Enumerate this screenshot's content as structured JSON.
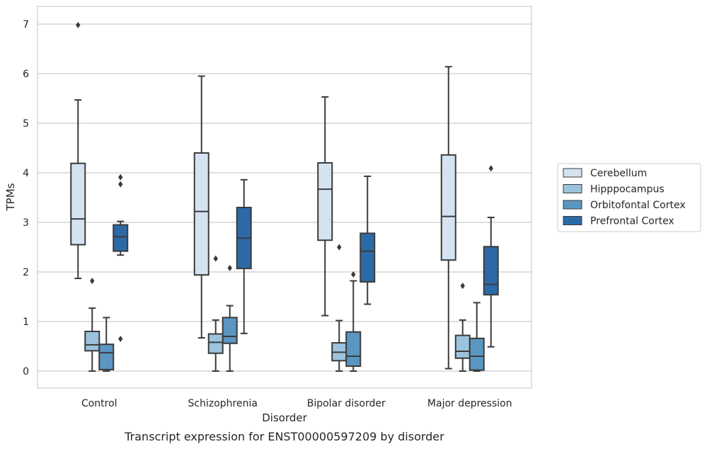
{
  "chart_data": {
    "type": "boxplot",
    "title": "",
    "caption": "Transcript expression for ENST00000597209 by disorder",
    "xlabel": "Disorder",
    "ylabel": "TPMs",
    "ylim": [
      -0.33,
      7.35
    ],
    "yticks": [
      0,
      1,
      2,
      3,
      4,
      5,
      6,
      7
    ],
    "grid": "horizontal",
    "legend_position": "center-right",
    "categories": [
      "Control",
      "Schizophrenia",
      "Bipolar disorder",
      "Major depression"
    ],
    "series": [
      {
        "name": "Cerebellum",
        "color": "#d5e3f1",
        "boxes": [
          {
            "q1": 2.55,
            "median": 3.07,
            "q3": 4.19,
            "whisker_low": 1.87,
            "whisker_high": 5.47,
            "outliers": [
              6.98
            ]
          },
          {
            "q1": 1.94,
            "median": 3.22,
            "q3": 4.4,
            "whisker_low": 0.67,
            "whisker_high": 5.95,
            "outliers": []
          },
          {
            "q1": 2.64,
            "median": 3.67,
            "q3": 4.2,
            "whisker_low": 1.12,
            "whisker_high": 5.53,
            "outliers": []
          },
          {
            "q1": 2.24,
            "median": 3.12,
            "q3": 4.36,
            "whisker_low": 0.05,
            "whisker_high": 6.14,
            "outliers": []
          }
        ]
      },
      {
        "name": "Hipppocampus",
        "color": "#9cc3dd",
        "boxes": [
          {
            "q1": 0.41,
            "median": 0.53,
            "q3": 0.8,
            "whisker_low": 0.0,
            "whisker_high": 1.27,
            "outliers": [
              1.82
            ]
          },
          {
            "q1": 0.36,
            "median": 0.58,
            "q3": 0.75,
            "whisker_low": 0.0,
            "whisker_high": 1.03,
            "outliers": [
              2.27
            ]
          },
          {
            "q1": 0.21,
            "median": 0.38,
            "q3": 0.57,
            "whisker_low": 0.0,
            "whisker_high": 1.02,
            "outliers": [
              2.5
            ]
          },
          {
            "q1": 0.26,
            "median": 0.4,
            "q3": 0.72,
            "whisker_low": 0.0,
            "whisker_high": 1.03,
            "outliers": [
              1.72
            ]
          }
        ]
      },
      {
        "name": "Orbitofontal Cortex",
        "color": "#5b96c2",
        "boxes": [
          {
            "q1": 0.03,
            "median": 0.37,
            "q3": 0.54,
            "whisker_low": 0.0,
            "whisker_high": 1.08,
            "outliers": []
          },
          {
            "q1": 0.56,
            "median": 0.7,
            "q3": 1.08,
            "whisker_low": 0.0,
            "whisker_high": 1.32,
            "outliers": [
              2.08
            ]
          },
          {
            "q1": 0.1,
            "median": 0.3,
            "q3": 0.79,
            "whisker_low": 0.0,
            "whisker_high": 1.82,
            "outliers": [
              1.95
            ]
          },
          {
            "q1": 0.02,
            "median": 0.3,
            "q3": 0.66,
            "whisker_low": 0.0,
            "whisker_high": 1.38,
            "outliers": []
          }
        ]
      },
      {
        "name": "Prefrontal Cortex",
        "color": "#2c6aa6",
        "boxes": [
          {
            "q1": 2.42,
            "median": 2.71,
            "q3": 2.95,
            "whisker_low": 2.34,
            "whisker_high": 3.02,
            "outliers": [
              3.91,
              3.77,
              0.65
            ]
          },
          {
            "q1": 2.07,
            "median": 2.68,
            "q3": 3.3,
            "whisker_low": 0.76,
            "whisker_high": 3.86,
            "outliers": []
          },
          {
            "q1": 1.8,
            "median": 2.42,
            "q3": 2.78,
            "whisker_low": 1.35,
            "whisker_high": 3.93,
            "outliers": []
          },
          {
            "q1": 1.54,
            "median": 1.75,
            "q3": 2.51,
            "whisker_low": 0.49,
            "whisker_high": 3.1,
            "outliers": [
              4.09
            ]
          }
        ]
      }
    ]
  }
}
